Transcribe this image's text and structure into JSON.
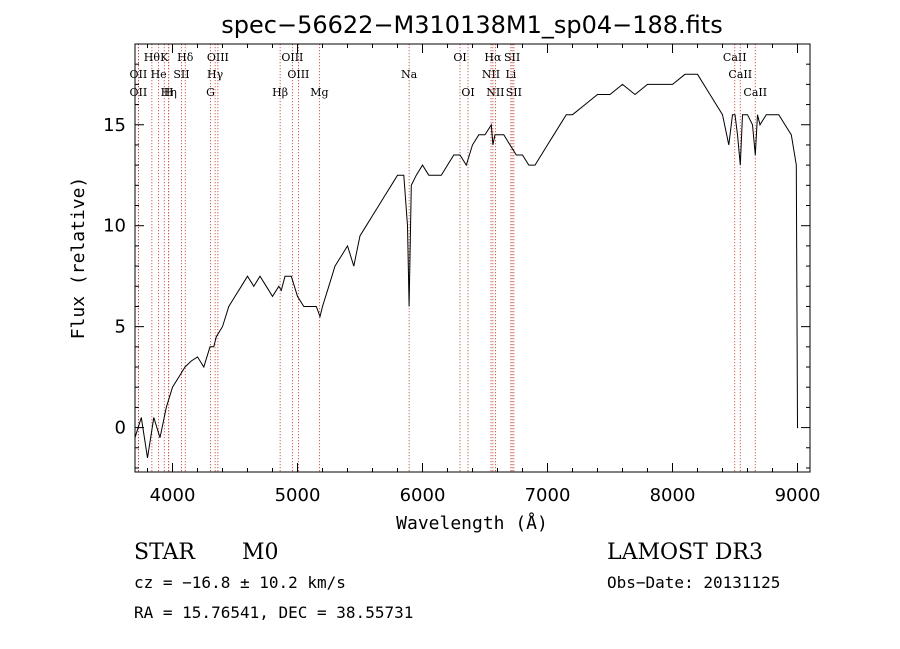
{
  "chart_data": {
    "type": "line",
    "title": "spec−56622−M310138M1_sp04−188.fits",
    "xlabel": "Wavelength (Å)",
    "ylabel": "Flux (relative)",
    "xlim": [
      3700,
      9100
    ],
    "ylim": [
      -2.2,
      19
    ],
    "xticks": [
      4000,
      5000,
      6000,
      7000,
      8000,
      9000
    ],
    "yticks": [
      0,
      5,
      10,
      15
    ],
    "series": [
      {
        "name": "spectrum",
        "x": [
          3700,
          3750,
          3800,
          3850,
          3900,
          3950,
          4000,
          4050,
          4100,
          4150,
          4200,
          4250,
          4300,
          4330,
          4350,
          4400,
          4450,
          4500,
          4550,
          4600,
          4650,
          4700,
          4750,
          4800,
          4850,
          4870,
          4900,
          4950,
          5000,
          5050,
          5100,
          5150,
          5180,
          5200,
          5250,
          5300,
          5350,
          5400,
          5450,
          5500,
          5550,
          5600,
          5650,
          5700,
          5750,
          5800,
          5850,
          5880,
          5893,
          5910,
          5950,
          6000,
          6050,
          6100,
          6150,
          6200,
          6250,
          6300,
          6350,
          6400,
          6450,
          6500,
          6550,
          6563,
          6580,
          6600,
          6650,
          6700,
          6750,
          6800,
          6850,
          6900,
          6950,
          7000,
          7050,
          7100,
          7150,
          7200,
          7300,
          7400,
          7500,
          7600,
          7700,
          7800,
          7900,
          8000,
          8100,
          8200,
          8300,
          8400,
          8450,
          8480,
          8500,
          8520,
          8542,
          8560,
          8600,
          8640,
          8662,
          8680,
          8700,
          8750,
          8800,
          8850,
          8900,
          8950,
          8990,
          9000,
          9005
        ],
        "y": [
          -0.5,
          0.5,
          -1.5,
          0.5,
          -0.5,
          1.0,
          2.0,
          2.5,
          3.0,
          3.3,
          3.5,
          3.0,
          4.0,
          4.0,
          4.5,
          5.0,
          6.0,
          6.5,
          7.0,
          7.5,
          7.0,
          7.5,
          7.0,
          6.5,
          7.0,
          6.8,
          7.5,
          7.5,
          6.5,
          6.0,
          6.0,
          6.0,
          5.5,
          6.0,
          7.0,
          8.0,
          8.5,
          9.0,
          8.0,
          9.5,
          10.0,
          10.5,
          11.0,
          11.5,
          12.0,
          12.5,
          12.5,
          10.0,
          6.0,
          12.0,
          12.5,
          13.0,
          12.5,
          12.5,
          12.5,
          13.0,
          13.5,
          13.5,
          13.0,
          14.0,
          14.5,
          14.5,
          15.0,
          14.0,
          14.5,
          14.5,
          14.5,
          14.0,
          13.5,
          13.5,
          13.0,
          13.0,
          13.5,
          14.0,
          14.5,
          15.0,
          15.5,
          15.5,
          16.0,
          16.5,
          16.5,
          17.0,
          16.5,
          17.0,
          17.0,
          17.0,
          17.5,
          17.5,
          16.5,
          15.5,
          14.0,
          15.5,
          15.5,
          14.5,
          13.0,
          15.5,
          15.5,
          15.0,
          13.5,
          15.5,
          15.0,
          15.5,
          15.5,
          15.5,
          15.0,
          14.5,
          13.0,
          0.0,
          0.0
        ]
      }
    ],
    "lines": [
      {
        "wave": 3835,
        "label": "Hθ",
        "row": 1
      },
      {
        "wave": 3889,
        "label": "He",
        "row": 2
      },
      {
        "wave": 3934,
        "label": "K",
        "row": 1
      },
      {
        "wave": 3969,
        "label": "H",
        "row": 3
      },
      {
        "wave": 4102,
        "label": "Hδ",
        "row": 1
      },
      {
        "wave": 4072,
        "label": "SII",
        "row": 2
      },
      {
        "wave": 3727,
        "label": "OII",
        "row": 2
      },
      {
        "wave": 3727,
        "label": "OII",
        "row": 3
      },
      {
        "wave": 3970,
        "label": "Hη",
        "row": 3
      },
      {
        "wave": 4304,
        "label": "G",
        "row": 3
      },
      {
        "wave": 4341,
        "label": "Hγ",
        "row": 2
      },
      {
        "wave": 4363,
        "label": "OIII",
        "row": 1
      },
      {
        "wave": 4861,
        "label": "Hβ",
        "row": 3
      },
      {
        "wave": 4959,
        "label": "OIII",
        "row": 1
      },
      {
        "wave": 5007,
        "label": "OIII",
        "row": 2
      },
      {
        "wave": 5175,
        "label": "Mg",
        "row": 3
      },
      {
        "wave": 5893,
        "label": "Na",
        "row": 2
      },
      {
        "wave": 6300,
        "label": "OI",
        "row": 1
      },
      {
        "wave": 6364,
        "label": "OI",
        "row": 3
      },
      {
        "wave": 6563,
        "label": "Hα",
        "row": 1
      },
      {
        "wave": 6548,
        "label": "NII",
        "row": 2
      },
      {
        "wave": 6583,
        "label": "NII",
        "row": 3
      },
      {
        "wave": 6707,
        "label": "Li",
        "row": 2
      },
      {
        "wave": 6717,
        "label": "SII",
        "row": 1
      },
      {
        "wave": 6731,
        "label": "SII",
        "row": 3
      },
      {
        "wave": 8498,
        "label": "CaII",
        "row": 1
      },
      {
        "wave": 8542,
        "label": "CaII",
        "row": 2
      },
      {
        "wave": 8662,
        "label": "CaII",
        "row": 3
      }
    ]
  },
  "info": {
    "object_class": "STAR",
    "subclass": "M0",
    "survey": "LAMOST DR3",
    "cz": "cz = −16.8 ± 10.2 km/s",
    "obs_date": "Obs−Date: 20131125",
    "coords": "RA =  15.76541, DEC =  38.55731"
  }
}
